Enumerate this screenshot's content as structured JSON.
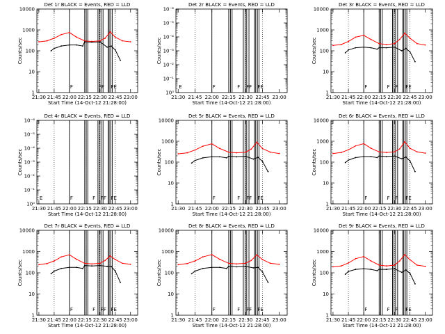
{
  "figure": {
    "background": "#ffffff",
    "events_color": "#000000",
    "lld_color": "#ff0000"
  },
  "chart_data": [
    {
      "id": "1r",
      "type": "line",
      "title": "Det 1r BLACK = Events, RED = LLD",
      "xlabel": "Start Time (14-Oct-12 21:28:00)",
      "ylabel": "Counts/sec",
      "x_ticks": [
        "21:30",
        "21:45",
        "22:00",
        "22:15",
        "22:30",
        "22:45",
        "23:00"
      ],
      "y_ticks": [
        "1",
        "10",
        "100",
        "1000",
        "10000"
      ],
      "y_scale": "log",
      "ylim": [
        1,
        10000
      ],
      "flag_labels": [
        {
          "label": "F",
          "time": "22:00"
        },
        {
          "label": "FF",
          "time": "22:28"
        },
        {
          "label": "FE",
          "time": "22:40"
        }
      ],
      "series": [
        {
          "color": "red",
          "x": [
            "21:30",
            "21:38",
            "21:45",
            "21:52",
            "22:00",
            "22:07",
            "22:15",
            "22:22",
            "22:30",
            "22:35",
            "22:40",
            "22:45",
            "22:52",
            "23:00"
          ],
          "values": [
            270,
            300,
            400,
            600,
            750,
            450,
            300,
            280,
            300,
            400,
            800,
            450,
            300,
            270
          ]
        },
        {
          "color": "black",
          "x": [
            "21:42",
            "21:45",
            "21:52",
            "22:00",
            "22:07",
            "22:13",
            "22:15",
            "22:22",
            "22:30",
            "22:37",
            "22:41",
            "22:45",
            "22:50"
          ],
          "values": [
            100,
            130,
            170,
            190,
            190,
            170,
            270,
            260,
            270,
            150,
            170,
            110,
            35
          ]
        }
      ]
    },
    {
      "id": "2r",
      "type": "line",
      "title": "Det 2r BLACK = Events, RED = LLD",
      "xlabel": "Start Time (14-Oct-12 21:28:00)",
      "ylabel": "Counts/sec",
      "x_ticks": [
        "21:30",
        "21:45",
        "22:00",
        "22:15",
        "22:30",
        "22:45",
        "23:00"
      ],
      "y_ticks": [
        "10⁰",
        "10⁻¹",
        "10⁻²",
        "10⁻³",
        "10⁻⁴",
        "10⁻⁵",
        "10⁻⁶"
      ],
      "y_scale": "log",
      "ylim": [
        1,
        1e-06
      ],
      "flag_labels": [
        {
          "label": "E",
          "time": "21:30"
        },
        {
          "label": "F",
          "time": "22:00"
        },
        {
          "label": "F",
          "time": "22:22"
        },
        {
          "label": "FF",
          "time": "22:30"
        },
        {
          "label": "FE",
          "time": "22:40"
        }
      ],
      "series": []
    },
    {
      "id": "3r",
      "type": "line",
      "title": "Det 3r BLACK = Events, RED = LLD",
      "xlabel": "Start Time (14-Oct-12 21:28:00)",
      "ylabel": "Counts/sec",
      "x_ticks": [
        "21:30",
        "21:45",
        "22:00",
        "22:15",
        "22:30",
        "22:45",
        "23:00"
      ],
      "y_ticks": [
        "1",
        "10",
        "100",
        "1000",
        "10000"
      ],
      "y_scale": "log",
      "ylim": [
        1,
        10000
      ],
      "flag_labels": [
        {
          "label": "F",
          "time": "22:00"
        },
        {
          "label": "F",
          "time": "22:22"
        },
        {
          "label": "F",
          "time": "22:30"
        },
        {
          "label": "FE",
          "time": "22:40"
        }
      ],
      "series": [
        {
          "color": "red",
          "x": [
            "21:30",
            "21:38",
            "21:45",
            "21:52",
            "22:00",
            "22:07",
            "22:15",
            "22:22",
            "22:30",
            "22:35",
            "22:40",
            "22:45",
            "22:52",
            "23:00"
          ],
          "values": [
            180,
            200,
            280,
            450,
            550,
            350,
            220,
            200,
            220,
            350,
            700,
            400,
            220,
            190
          ]
        },
        {
          "color": "black",
          "x": [
            "21:42",
            "21:45",
            "21:52",
            "22:00",
            "22:07",
            "22:13",
            "22:15",
            "22:22",
            "22:30",
            "22:37",
            "22:41",
            "22:45",
            "22:50"
          ],
          "values": [
            80,
            110,
            140,
            150,
            140,
            120,
            140,
            140,
            150,
            100,
            130,
            90,
            30
          ]
        }
      ]
    },
    {
      "id": "4r",
      "type": "line",
      "title": "Det 4r BLACK = Events, RED = LLD",
      "xlabel": "Start Time (14-Oct-12 21:28:00)",
      "ylabel": "Counts/sec",
      "x_ticks": [
        "21:30",
        "21:45",
        "22:00",
        "22:15",
        "22:30",
        "22:45",
        "23:00"
      ],
      "y_ticks": [
        "10⁰",
        "10⁻¹",
        "10⁻²",
        "10⁻³",
        "10⁻⁴",
        "10⁻⁵",
        "10⁻⁶"
      ],
      "y_scale": "log",
      "ylim": [
        1,
        1e-06
      ],
      "flag_labels": [
        {
          "label": "E",
          "time": "21:30"
        },
        {
          "label": "F",
          "time": "22:00"
        },
        {
          "label": "F",
          "time": "22:22"
        },
        {
          "label": "FF",
          "time": "22:30"
        },
        {
          "label": "FE",
          "time": "22:40"
        }
      ],
      "series": []
    },
    {
      "id": "5r",
      "type": "line",
      "title": "Det 5r BLACK = Events, RED = LLD",
      "xlabel": "Start Time (14-Oct-12 21:28:00)",
      "ylabel": "Counts/sec",
      "x_ticks": [
        "21:30",
        "21:45",
        "22:00",
        "22:15",
        "22:30",
        "22:45",
        "23:00"
      ],
      "y_ticks": [
        "1",
        "10",
        "100",
        "1000",
        "10000"
      ],
      "y_scale": "log",
      "ylim": [
        1,
        10000
      ],
      "flag_labels": [
        {
          "label": "F",
          "time": "22:00"
        },
        {
          "label": "F",
          "time": "22:22"
        },
        {
          "label": "FF",
          "time": "22:30"
        },
        {
          "label": "FE",
          "time": "22:40"
        }
      ],
      "series": [
        {
          "color": "red",
          "x": [
            "21:30",
            "21:38",
            "21:45",
            "21:52",
            "22:00",
            "22:07",
            "22:15",
            "22:22",
            "22:30",
            "22:35",
            "22:40",
            "22:45",
            "22:52",
            "23:00"
          ],
          "values": [
            250,
            280,
            380,
            580,
            750,
            450,
            300,
            280,
            300,
            420,
            900,
            450,
            300,
            260
          ]
        },
        {
          "color": "black",
          "x": [
            "21:42",
            "21:45",
            "21:52",
            "22:00",
            "22:07",
            "22:13",
            "22:15",
            "22:22",
            "22:30",
            "22:37",
            "22:41",
            "22:45",
            "22:50"
          ],
          "values": [
            90,
            120,
            160,
            180,
            180,
            160,
            190,
            180,
            190,
            140,
            170,
            110,
            35
          ]
        }
      ]
    },
    {
      "id": "6r",
      "type": "line",
      "title": "Det 6r BLACK = Events, RED = LLD",
      "xlabel": "Start Time (14-Oct-12 21:28:00)",
      "ylabel": "Counts/sec",
      "x_ticks": [
        "21:30",
        "21:45",
        "22:00",
        "22:15",
        "22:30",
        "22:45",
        "23:00"
      ],
      "y_ticks": [
        "1",
        "10",
        "100",
        "1000",
        "10000"
      ],
      "y_scale": "log",
      "ylim": [
        1,
        10000
      ],
      "flag_labels": [
        {
          "label": "F",
          "time": "22:00"
        },
        {
          "label": "F",
          "time": "22:22"
        },
        {
          "label": "F",
          "time": "22:30"
        },
        {
          "label": "FE",
          "time": "22:40"
        }
      ],
      "series": [
        {
          "color": "red",
          "x": [
            "21:30",
            "21:38",
            "21:45",
            "21:52",
            "22:00",
            "22:07",
            "22:15",
            "22:22",
            "22:30",
            "22:35",
            "22:40",
            "22:45",
            "22:52",
            "23:00"
          ],
          "values": [
            260,
            290,
            390,
            600,
            770,
            460,
            310,
            290,
            310,
            430,
            950,
            460,
            310,
            270
          ]
        },
        {
          "color": "black",
          "x": [
            "21:42",
            "21:45",
            "21:52",
            "22:00",
            "22:07",
            "22:13",
            "22:15",
            "22:22",
            "22:30",
            "22:37",
            "22:41",
            "22:45",
            "22:50"
          ],
          "values": [
            95,
            125,
            165,
            185,
            185,
            165,
            195,
            185,
            195,
            145,
            175,
            115,
            35
          ]
        }
      ]
    },
    {
      "id": "7r",
      "type": "line",
      "title": "Det 7r BLACK = Events, RED = LLD",
      "xlabel": "Start Time (14-Oct-12 21:28:00)",
      "ylabel": "Counts/sec",
      "x_ticks": [
        "21:30",
        "21:45",
        "22:00",
        "22:15",
        "22:30",
        "22:45",
        "23:00"
      ],
      "y_ticks": [
        "1",
        "10",
        "100",
        "1000",
        "10000"
      ],
      "y_scale": "log",
      "ylim": [
        1,
        10000
      ],
      "flag_labels": [
        {
          "label": "F",
          "time": "22:00"
        },
        {
          "label": "F",
          "time": "22:22"
        },
        {
          "label": "FF",
          "time": "22:30"
        },
        {
          "label": "FE",
          "time": "22:40"
        }
      ],
      "series": [
        {
          "color": "red",
          "x": [
            "21:30",
            "21:38",
            "21:45",
            "21:52",
            "22:00",
            "22:07",
            "22:15",
            "22:22",
            "22:30",
            "22:35",
            "22:40",
            "22:45",
            "22:52",
            "23:00"
          ],
          "values": [
            240,
            270,
            360,
            560,
            700,
            430,
            280,
            260,
            280,
            380,
            620,
            420,
            280,
            250
          ]
        },
        {
          "color": "black",
          "x": [
            "21:42",
            "21:45",
            "21:52",
            "22:00",
            "22:07",
            "22:13",
            "22:15",
            "22:22",
            "22:30",
            "22:37",
            "22:41",
            "22:45",
            "22:50"
          ],
          "values": [
            90,
            120,
            160,
            180,
            180,
            160,
            220,
            210,
            220,
            200,
            200,
            120,
            35
          ]
        }
      ]
    },
    {
      "id": "8r",
      "type": "line",
      "title": "Det 8r BLACK = Events, RED = LLD",
      "xlabel": "Start Time (14-Oct-12 21:28:00)",
      "ylabel": "Counts/sec",
      "x_ticks": [
        "21:30",
        "21:45",
        "22:00",
        "22:15",
        "22:30",
        "22:45",
        "23:00"
      ],
      "y_ticks": [
        "1",
        "10",
        "100",
        "1000",
        "10000"
      ],
      "y_scale": "log",
      "ylim": [
        1,
        10000
      ],
      "flag_labels": [
        {
          "label": "F",
          "time": "22:00"
        },
        {
          "label": "F",
          "time": "22:22"
        },
        {
          "label": "FF",
          "time": "22:30"
        },
        {
          "label": "FE",
          "time": "22:40"
        }
      ],
      "series": [
        {
          "color": "red",
          "x": [
            "21:30",
            "21:38",
            "21:45",
            "21:52",
            "22:00",
            "22:07",
            "22:15",
            "22:22",
            "22:30",
            "22:35",
            "22:40",
            "22:45",
            "22:52",
            "23:00"
          ],
          "values": [
            240,
            270,
            360,
            560,
            720,
            430,
            280,
            260,
            280,
            380,
            700,
            420,
            280,
            250
          ]
        },
        {
          "color": "black",
          "x": [
            "21:42",
            "21:45",
            "21:52",
            "22:00",
            "22:07",
            "22:13",
            "22:15",
            "22:22",
            "22:30",
            "22:37",
            "22:41",
            "22:45",
            "22:50"
          ],
          "values": [
            90,
            120,
            160,
            180,
            180,
            160,
            200,
            190,
            200,
            170,
            180,
            110,
            35
          ]
        }
      ]
    },
    {
      "id": "9r",
      "type": "line",
      "title": "Det 9r BLACK = Events, RED = LLD",
      "xlabel": "Start Time (14-Oct-12 21:28:00)",
      "ylabel": "Counts/sec",
      "x_ticks": [
        "21:30",
        "21:45",
        "22:00",
        "22:15",
        "22:30",
        "22:45",
        "23:00"
      ],
      "y_ticks": [
        "1",
        "10",
        "100",
        "1000",
        "10000"
      ],
      "y_scale": "log",
      "ylim": [
        1,
        10000
      ],
      "flag_labels": [
        {
          "label": "F",
          "time": "22:00"
        },
        {
          "label": "F",
          "time": "22:22"
        },
        {
          "label": "F",
          "time": "22:30"
        },
        {
          "label": "FE",
          "time": "22:40"
        }
      ],
      "series": [
        {
          "color": "red",
          "x": [
            "21:30",
            "21:38",
            "21:45",
            "21:52",
            "22:00",
            "22:07",
            "22:15",
            "22:22",
            "22:30",
            "22:35",
            "22:40",
            "22:45",
            "22:52",
            "23:00"
          ],
          "values": [
            190,
            210,
            290,
            460,
            580,
            360,
            230,
            210,
            230,
            360,
            720,
            410,
            230,
            200
          ]
        },
        {
          "color": "black",
          "x": [
            "21:42",
            "21:45",
            "21:52",
            "22:00",
            "22:07",
            "22:13",
            "22:15",
            "22:22",
            "22:30",
            "22:37",
            "22:41",
            "22:45",
            "22:50"
          ],
          "values": [
            85,
            115,
            145,
            155,
            145,
            125,
            145,
            145,
            155,
            105,
            135,
            95,
            30
          ]
        }
      ]
    }
  ]
}
